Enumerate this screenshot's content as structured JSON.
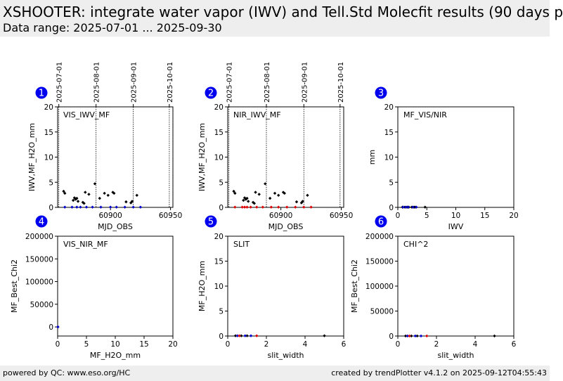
{
  "header": {
    "title": "XSHOOTER: integrate water vapor (IWV) and Tell.Std Molecfit results (90 days p",
    "subtitle": "Data range: 2025-07-01 ... 2025-09-30"
  },
  "footer": {
    "left": "powered by QC: www.eso.org/HC",
    "right": "created by trendPlotter v4.1.2 on 2025-09-12T04:55:43"
  },
  "colors": {
    "badge": "#0000ee",
    "black": "#000000",
    "blue": "#0000cc",
    "red": "#dd0000"
  },
  "chart_data": [
    {
      "panel": "1",
      "type": "scatter",
      "annotation": "VIS_IWV_MF",
      "xlabel": "MJD_OBS",
      "ylabel": "IWV,MF_H2O_mm",
      "xlim": [
        60856,
        60952
      ],
      "ylim": [
        0,
        20
      ],
      "xticks": [
        60900,
        60950
      ],
      "yticks": [
        0,
        5,
        10,
        15,
        20
      ],
      "date_ticks": [
        {
          "mjd": 60857,
          "label": "2025-07-01"
        },
        {
          "mjd": 60888,
          "label": "2025-08-01"
        },
        {
          "mjd": 60919,
          "label": "2025-09-01"
        },
        {
          "mjd": 60949,
          "label": "2025-10-01"
        }
      ],
      "series": [
        {
          "color": "black",
          "x": [
            60861,
            60862,
            60869,
            60870,
            60871,
            60872,
            60873,
            60877,
            60878,
            60879,
            60882,
            60887,
            60891,
            60895,
            60898,
            60902,
            60903,
            60913,
            60917,
            60918,
            60922
          ],
          "y": [
            3.2,
            2.8,
            1.4,
            1.9,
            1.6,
            1.8,
            1.2,
            1.0,
            0.8,
            3.0,
            2.6,
            4.7,
            1.8,
            2.8,
            2.4,
            3.0,
            2.8,
            1.1,
            0.9,
            1.2,
            2.4
          ]
        },
        {
          "color": "blue",
          "x": [
            60862,
            60868,
            60872,
            60875,
            60880,
            60885,
            60892,
            60900,
            60905,
            60912,
            60919,
            60925
          ],
          "y": [
            0.05,
            0.05,
            0.05,
            0.05,
            0.05,
            0.05,
            0.05,
            0.05,
            0.05,
            0.05,
            0.05,
            0.05
          ]
        }
      ]
    },
    {
      "panel": "2",
      "type": "scatter",
      "annotation": "NIR_IWV_MF",
      "xlabel": "MJD_OBS",
      "ylabel": "IWV,MF_H2O_mm",
      "xlim": [
        60856,
        60952
      ],
      "ylim": [
        0,
        20
      ],
      "xticks": [
        60900,
        60950
      ],
      "yticks": [
        0,
        5,
        10,
        15,
        20
      ],
      "date_ticks": [
        {
          "mjd": 60857,
          "label": "2025-07-01"
        },
        {
          "mjd": 60888,
          "label": "2025-08-01"
        },
        {
          "mjd": 60919,
          "label": "2025-09-01"
        },
        {
          "mjd": 60949,
          "label": "2025-10-01"
        }
      ],
      "series": [
        {
          "color": "black",
          "x": [
            60861,
            60862,
            60869,
            60870,
            60871,
            60872,
            60873,
            60877,
            60878,
            60879,
            60882,
            60887,
            60891,
            60895,
            60898,
            60902,
            60903,
            60913,
            60917,
            60918,
            60922
          ],
          "y": [
            3.2,
            2.8,
            1.4,
            1.9,
            1.6,
            1.8,
            1.2,
            1.0,
            0.8,
            3.0,
            2.6,
            4.7,
            1.8,
            2.8,
            2.4,
            3.0,
            2.8,
            1.1,
            0.9,
            1.2,
            2.4
          ]
        },
        {
          "color": "red",
          "x": [
            60862,
            60868,
            60870,
            60872,
            60875,
            60880,
            60885,
            60892,
            60898,
            60905,
            60912,
            60919,
            60925
          ],
          "y": [
            0.05,
            0.05,
            0.05,
            0.05,
            0.05,
            0.05,
            0.05,
            0.05,
            0.05,
            0.05,
            0.05,
            0.05,
            0.05
          ]
        }
      ]
    },
    {
      "panel": "3",
      "type": "scatter",
      "annotation": "MF_VIS/NIR",
      "xlabel": "IWV",
      "ylabel": "mm",
      "xlim": [
        0,
        20
      ],
      "ylim": [
        0,
        20
      ],
      "xticks": [
        0,
        5,
        10,
        15,
        20
      ],
      "yticks": [
        0,
        5,
        10,
        15,
        20
      ],
      "series": [
        {
          "color": "black",
          "x": [
            0.8,
            1.2,
            1.6,
            1.9,
            2.4,
            2.8,
            3.0,
            4.7
          ],
          "y": [
            0.05,
            0.05,
            0.05,
            0.05,
            0.05,
            0.05,
            0.05,
            0.05
          ]
        },
        {
          "color": "blue",
          "x": [
            0.9,
            1.4,
            1.8,
            2.6,
            3.2
          ],
          "y": [
            0.05,
            0.05,
            0.05,
            0.05,
            0.05
          ]
        }
      ]
    },
    {
      "panel": "4",
      "type": "scatter",
      "annotation": "VIS_NIR_MF",
      "xlabel": "MF_H2O_mm",
      "ylabel": "MF_Best_Chi2",
      "xlim": [
        0,
        20
      ],
      "ylim": [
        -20000,
        200000
      ],
      "xticks": [
        0,
        5,
        10,
        15,
        20
      ],
      "yticks": [
        0,
        50000,
        100000,
        150000,
        200000
      ],
      "series": [
        {
          "color": "black",
          "x": [
            0.05
          ],
          "y": [
            0
          ]
        },
        {
          "color": "blue",
          "x": [
            0.05
          ],
          "y": [
            0
          ]
        }
      ]
    },
    {
      "panel": "5",
      "type": "scatter",
      "annotation": "SLIT",
      "xlabel": "slit_width",
      "ylabel": "MF_H2O_mm",
      "xlim": [
        0,
        6
      ],
      "ylim": [
        0,
        20
      ],
      "xticks": [
        0,
        2,
        4,
        6
      ],
      "yticks": [
        0,
        5,
        10,
        15,
        20
      ],
      "series": [
        {
          "color": "black",
          "x": [
            0.4,
            0.7,
            1.0,
            5.0
          ],
          "y": [
            0.05,
            0.05,
            0.05,
            0.05
          ]
        },
        {
          "color": "blue",
          "x": [
            0.5,
            0.9,
            1.2
          ],
          "y": [
            0.05,
            0.05,
            0.05
          ]
        },
        {
          "color": "red",
          "x": [
            0.6,
            1.5
          ],
          "y": [
            0.05,
            0.05
          ]
        }
      ]
    },
    {
      "panel": "6",
      "type": "scatter",
      "annotation": "CHI^2",
      "xlabel": "slit_width",
      "ylabel": "MF_Best_Chi2",
      "xlim": [
        0,
        6
      ],
      "ylim": [
        0,
        200000
      ],
      "xticks": [
        0,
        2,
        4,
        6
      ],
      "yticks": [
        0,
        50000,
        100000,
        150000,
        200000
      ],
      "series": [
        {
          "color": "black",
          "x": [
            0.4,
            0.7,
            1.0,
            5.0
          ],
          "y": [
            100,
            100,
            100,
            100
          ]
        },
        {
          "color": "blue",
          "x": [
            0.5,
            0.9,
            1.2
          ],
          "y": [
            100,
            100,
            100
          ]
        },
        {
          "color": "red",
          "x": [
            0.6,
            1.5
          ],
          "y": [
            100,
            100
          ]
        }
      ]
    }
  ]
}
